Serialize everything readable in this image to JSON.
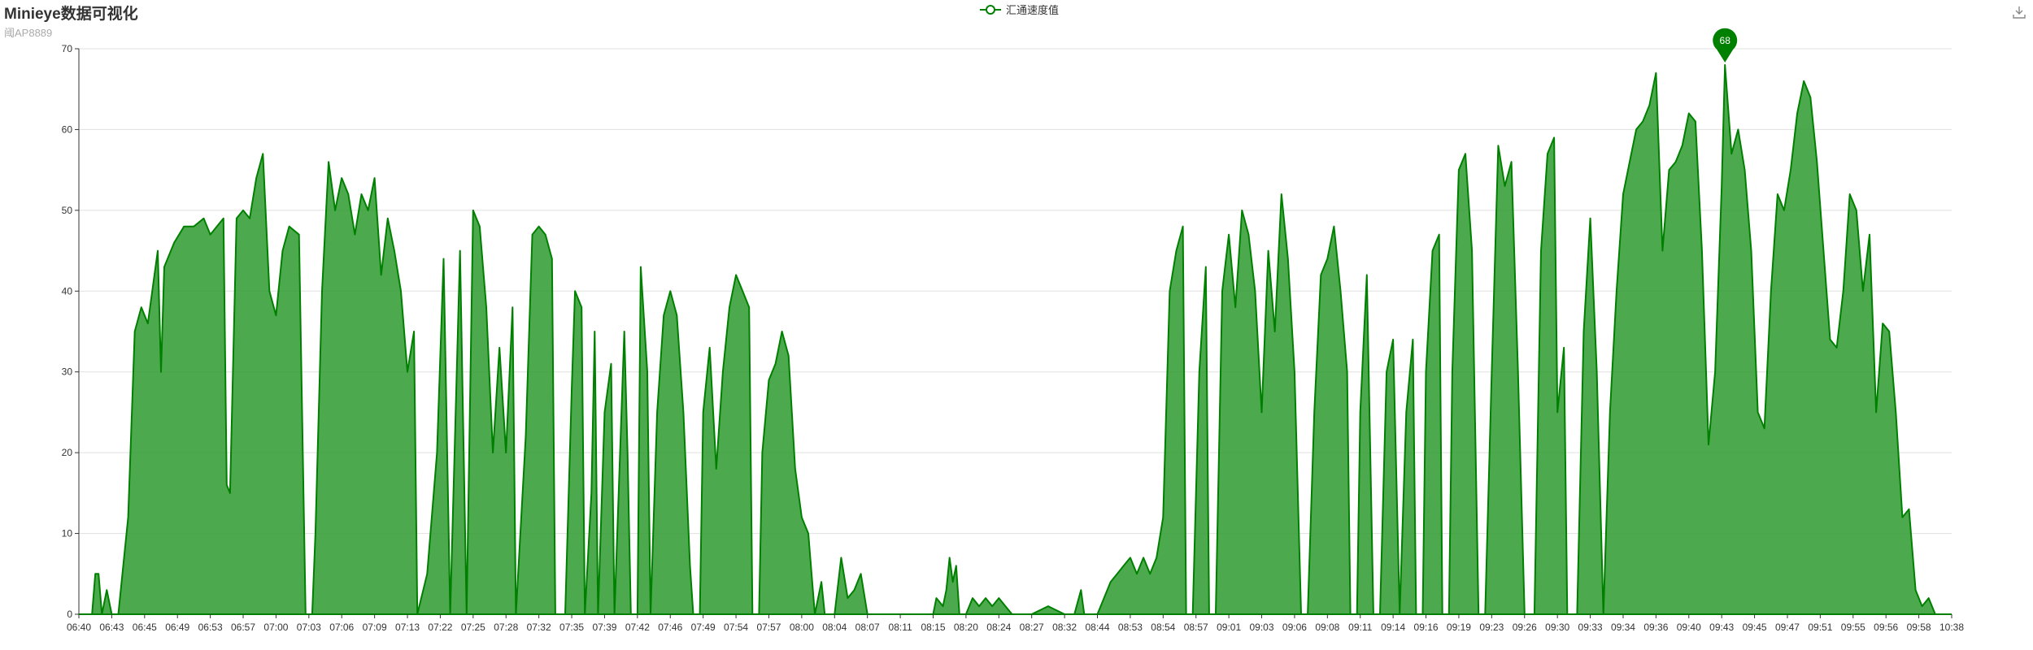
{
  "title": "Minieye数据可视化",
  "subtitle": "阈AP8889",
  "toolbox": {
    "icon": "download-icon"
  },
  "colors": {
    "series": "#008000",
    "area": "#2e9a2e",
    "grid": "#e0e0e0",
    "axis": "#333333"
  },
  "chart_data": {
    "type": "area",
    "legend": [
      "汇通速度值"
    ],
    "x_tick_labels": [
      "06:40",
      "06:43",
      "06:45",
      "06:49",
      "06:53",
      "06:57",
      "07:00",
      "07:03",
      "07:06",
      "07:09",
      "07:13",
      "07:22",
      "07:25",
      "07:28",
      "07:32",
      "07:35",
      "07:39",
      "07:42",
      "07:46",
      "07:49",
      "07:54",
      "07:57",
      "08:00",
      "08:04",
      "08:07",
      "08:11",
      "08:15",
      "08:20",
      "08:24",
      "08:27",
      "08:32",
      "08:44",
      "08:53",
      "08:54",
      "08:57",
      "09:01",
      "09:03",
      "09:06",
      "09:08",
      "09:11",
      "09:14",
      "09:16",
      "09:19",
      "09:23",
      "09:26",
      "09:30",
      "09:33",
      "09:34",
      "09:36",
      "09:40",
      "09:43",
      "09:45",
      "09:47",
      "09:51",
      "09:55",
      "09:56",
      "09:58",
      "10:38"
    ],
    "ylim": [
      0,
      70
    ],
    "y_ticks": [
      0,
      10,
      20,
      30,
      40,
      50,
      60,
      70
    ],
    "grid": true,
    "legend_position": "top-center",
    "max_point": {
      "label": "68",
      "value": 68,
      "x_index": 50.1
    },
    "series": [
      {
        "name": "汇通速度值",
        "points": [
          [
            0,
            0
          ],
          [
            0.4,
            0
          ],
          [
            0.5,
            5
          ],
          [
            0.6,
            5
          ],
          [
            0.7,
            0
          ],
          [
            0.85,
            3
          ],
          [
            1.0,
            0
          ],
          [
            1.2,
            0
          ],
          [
            1.5,
            12
          ],
          [
            1.7,
            35
          ],
          [
            1.9,
            38
          ],
          [
            2.1,
            36
          ],
          [
            2.4,
            45
          ],
          [
            2.5,
            30
          ],
          [
            2.6,
            43
          ],
          [
            2.9,
            46
          ],
          [
            3.2,
            48
          ],
          [
            3.5,
            48
          ],
          [
            3.8,
            49
          ],
          [
            4.0,
            47
          ],
          [
            4.4,
            49
          ],
          [
            4.5,
            16
          ],
          [
            4.6,
            15
          ],
          [
            4.8,
            49
          ],
          [
            5.0,
            50
          ],
          [
            5.2,
            49
          ],
          [
            5.4,
            54
          ],
          [
            5.6,
            57
          ],
          [
            5.8,
            40
          ],
          [
            6.0,
            37
          ],
          [
            6.2,
            45
          ],
          [
            6.4,
            48
          ],
          [
            6.7,
            47
          ],
          [
            6.9,
            0
          ],
          [
            7.1,
            0
          ],
          [
            7.2,
            10
          ],
          [
            7.4,
            40
          ],
          [
            7.6,
            56
          ],
          [
            7.8,
            50
          ],
          [
            8.0,
            54
          ],
          [
            8.2,
            52
          ],
          [
            8.4,
            47
          ],
          [
            8.6,
            52
          ],
          [
            8.8,
            50
          ],
          [
            9.0,
            54
          ],
          [
            9.2,
            42
          ],
          [
            9.4,
            49
          ],
          [
            9.6,
            45
          ],
          [
            9.8,
            40
          ],
          [
            10.0,
            30
          ],
          [
            10.2,
            35
          ],
          [
            10.3,
            0
          ],
          [
            10.6,
            5
          ],
          [
            10.9,
            20
          ],
          [
            11.1,
            44
          ],
          [
            11.3,
            0
          ],
          [
            11.6,
            45
          ],
          [
            11.8,
            0
          ],
          [
            12.0,
            50
          ],
          [
            12.2,
            48
          ],
          [
            12.4,
            38
          ],
          [
            12.6,
            20
          ],
          [
            12.8,
            33
          ],
          [
            13.0,
            20
          ],
          [
            13.2,
            38
          ],
          [
            13.3,
            0
          ],
          [
            13.6,
            22
          ],
          [
            13.8,
            47
          ],
          [
            14.0,
            48
          ],
          [
            14.2,
            47
          ],
          [
            14.4,
            44
          ],
          [
            14.5,
            0
          ],
          [
            14.8,
            0
          ],
          [
            15.0,
            28
          ],
          [
            15.1,
            40
          ],
          [
            15.3,
            38
          ],
          [
            15.4,
            0
          ],
          [
            15.6,
            15
          ],
          [
            15.7,
            35
          ],
          [
            15.8,
            0
          ],
          [
            16.0,
            25
          ],
          [
            16.2,
            31
          ],
          [
            16.3,
            0
          ],
          [
            16.6,
            35
          ],
          [
            16.7,
            20
          ],
          [
            16.8,
            0
          ],
          [
            17.0,
            0
          ],
          [
            17.1,
            43
          ],
          [
            17.3,
            30
          ],
          [
            17.4,
            0
          ],
          [
            17.6,
            25
          ],
          [
            17.8,
            37
          ],
          [
            18.0,
            40
          ],
          [
            18.2,
            37
          ],
          [
            18.4,
            25
          ],
          [
            18.6,
            6
          ],
          [
            18.7,
            0
          ],
          [
            18.9,
            0
          ],
          [
            19.0,
            25
          ],
          [
            19.2,
            33
          ],
          [
            19.4,
            18
          ],
          [
            19.6,
            30
          ],
          [
            19.8,
            38
          ],
          [
            20.0,
            42
          ],
          [
            20.2,
            40
          ],
          [
            20.4,
            38
          ],
          [
            20.5,
            0
          ],
          [
            20.7,
            0
          ],
          [
            20.8,
            20
          ],
          [
            21.0,
            29
          ],
          [
            21.2,
            31
          ],
          [
            21.4,
            35
          ],
          [
            21.6,
            32
          ],
          [
            21.8,
            18
          ],
          [
            22.0,
            12
          ],
          [
            22.2,
            10
          ],
          [
            22.4,
            0
          ],
          [
            22.6,
            4
          ],
          [
            22.7,
            0
          ],
          [
            22.8,
            0
          ],
          [
            23.0,
            0
          ],
          [
            23.2,
            7
          ],
          [
            23.4,
            2
          ],
          [
            23.6,
            3
          ],
          [
            23.8,
            5
          ],
          [
            24.0,
            0
          ],
          [
            24.5,
            0
          ],
          [
            25.0,
            0
          ],
          [
            25.5,
            0
          ],
          [
            26.0,
            0
          ],
          [
            26.1,
            2
          ],
          [
            26.3,
            1
          ],
          [
            26.4,
            3
          ],
          [
            26.5,
            7
          ],
          [
            26.6,
            4
          ],
          [
            26.7,
            6
          ],
          [
            26.8,
            0
          ],
          [
            27.0,
            0
          ],
          [
            27.2,
            2
          ],
          [
            27.4,
            1
          ],
          [
            27.6,
            2
          ],
          [
            27.8,
            1
          ],
          [
            28.0,
            2
          ],
          [
            28.2,
            1
          ],
          [
            28.4,
            0
          ],
          [
            29.0,
            0
          ],
          [
            29.5,
            1
          ],
          [
            30.0,
            0
          ],
          [
            30.3,
            0
          ],
          [
            30.5,
            3
          ],
          [
            30.6,
            0
          ],
          [
            31.0,
            0
          ],
          [
            31.2,
            2
          ],
          [
            31.4,
            4
          ],
          [
            31.6,
            5
          ],
          [
            31.8,
            6
          ],
          [
            32.0,
            7
          ],
          [
            32.2,
            5
          ],
          [
            32.4,
            7
          ],
          [
            32.6,
            5
          ],
          [
            32.8,
            7
          ],
          [
            33.0,
            12
          ],
          [
            33.2,
            40
          ],
          [
            33.4,
            45
          ],
          [
            33.6,
            48
          ],
          [
            33.7,
            0
          ],
          [
            33.9,
            0
          ],
          [
            34.1,
            30
          ],
          [
            34.3,
            43
          ],
          [
            34.4,
            0
          ],
          [
            34.6,
            0
          ],
          [
            34.8,
            40
          ],
          [
            35.0,
            47
          ],
          [
            35.2,
            38
          ],
          [
            35.4,
            50
          ],
          [
            35.6,
            47
          ],
          [
            35.8,
            40
          ],
          [
            36.0,
            25
          ],
          [
            36.2,
            45
          ],
          [
            36.4,
            35
          ],
          [
            36.6,
            52
          ],
          [
            36.8,
            44
          ],
          [
            37.0,
            30
          ],
          [
            37.2,
            0
          ],
          [
            37.4,
            0
          ],
          [
            37.6,
            25
          ],
          [
            37.8,
            42
          ],
          [
            38.0,
            44
          ],
          [
            38.2,
            48
          ],
          [
            38.4,
            40
          ],
          [
            38.6,
            30
          ],
          [
            38.7,
            0
          ],
          [
            38.9,
            0
          ],
          [
            39.0,
            25
          ],
          [
            39.2,
            42
          ],
          [
            39.4,
            0
          ],
          [
            39.6,
            0
          ],
          [
            39.8,
            30
          ],
          [
            40.0,
            34
          ],
          [
            40.2,
            0
          ],
          [
            40.4,
            25
          ],
          [
            40.6,
            34
          ],
          [
            40.7,
            0
          ],
          [
            40.9,
            0
          ],
          [
            41.0,
            30
          ],
          [
            41.2,
            45
          ],
          [
            41.4,
            47
          ],
          [
            41.5,
            0
          ],
          [
            41.7,
            0
          ],
          [
            41.8,
            30
          ],
          [
            42.0,
            55
          ],
          [
            42.2,
            57
          ],
          [
            42.4,
            45
          ],
          [
            42.6,
            0
          ],
          [
            42.8,
            0
          ],
          [
            43.0,
            30
          ],
          [
            43.2,
            58
          ],
          [
            43.4,
            53
          ],
          [
            43.6,
            56
          ],
          [
            43.8,
            30
          ],
          [
            44.0,
            0
          ],
          [
            44.3,
            0
          ],
          [
            44.5,
            45
          ],
          [
            44.7,
            57
          ],
          [
            44.9,
            59
          ],
          [
            45.0,
            25
          ],
          [
            45.2,
            33
          ],
          [
            45.3,
            0
          ],
          [
            45.6,
            0
          ],
          [
            45.8,
            35
          ],
          [
            46.0,
            49
          ],
          [
            46.2,
            30
          ],
          [
            46.4,
            0
          ],
          [
            46.6,
            25
          ],
          [
            46.8,
            40
          ],
          [
            47.0,
            52
          ],
          [
            47.2,
            56
          ],
          [
            47.4,
            60
          ],
          [
            47.6,
            61
          ],
          [
            47.8,
            63
          ],
          [
            48.0,
            67
          ],
          [
            48.2,
            45
          ],
          [
            48.4,
            55
          ],
          [
            48.6,
            56
          ],
          [
            48.8,
            58
          ],
          [
            49.0,
            62
          ],
          [
            49.2,
            61
          ],
          [
            49.4,
            45
          ],
          [
            49.6,
            21
          ],
          [
            49.8,
            30
          ],
          [
            50.0,
            53
          ],
          [
            50.1,
            68
          ],
          [
            50.3,
            57
          ],
          [
            50.5,
            60
          ],
          [
            50.7,
            55
          ],
          [
            50.9,
            45
          ],
          [
            51.1,
            25
          ],
          [
            51.3,
            23
          ],
          [
            51.5,
            40
          ],
          [
            51.7,
            52
          ],
          [
            51.9,
            50
          ],
          [
            52.1,
            55
          ],
          [
            52.3,
            62
          ],
          [
            52.5,
            66
          ],
          [
            52.7,
            64
          ],
          [
            52.9,
            56
          ],
          [
            53.1,
            45
          ],
          [
            53.3,
            34
          ],
          [
            53.5,
            33
          ],
          [
            53.7,
            40
          ],
          [
            53.9,
            52
          ],
          [
            54.1,
            50
          ],
          [
            54.3,
            40
          ],
          [
            54.5,
            47
          ],
          [
            54.7,
            25
          ],
          [
            54.9,
            36
          ],
          [
            55.1,
            35
          ],
          [
            55.3,
            25
          ],
          [
            55.5,
            12
          ],
          [
            55.7,
            13
          ],
          [
            55.9,
            3
          ],
          [
            56.1,
            1
          ],
          [
            56.3,
            2
          ],
          [
            56.5,
            0
          ],
          [
            57.0,
            0
          ]
        ]
      }
    ]
  }
}
